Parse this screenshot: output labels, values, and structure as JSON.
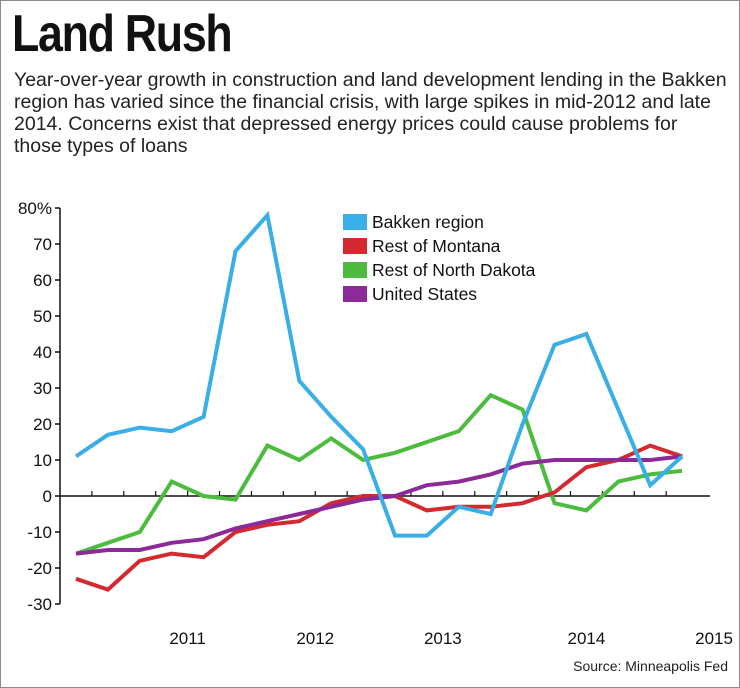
{
  "header": {
    "title": "Land Rush",
    "subtitle": "Year-over-year growth in construction and land development lending in the Bakken region has varied since the financial crisis, with large spikes in mid-2012 and late 2014. Concerns exist that depressed energy prices could cause problems for those types of loans"
  },
  "footer": {
    "source": "Source: Minneapolis Fed"
  },
  "colors": {
    "bakken": "#3aaee6",
    "montana": "#d42a2f",
    "north_dakota": "#4cbb3e",
    "united_states": "#8c2a98",
    "axis": "#111111"
  },
  "chart_data": {
    "type": "line",
    "title": "Land Rush",
    "xlabel": "",
    "ylabel": "",
    "ylim": [
      -30,
      80
    ],
    "y_ticks": [
      {
        "value": 80,
        "label": "80%"
      },
      {
        "value": 70,
        "label": "70"
      },
      {
        "value": 60,
        "label": "60"
      },
      {
        "value": 50,
        "label": "50"
      },
      {
        "value": 40,
        "label": "40"
      },
      {
        "value": 30,
        "label": "30"
      },
      {
        "value": 20,
        "label": "20"
      },
      {
        "value": 10,
        "label": "10"
      },
      {
        "value": 0,
        "label": "0"
      },
      {
        "value": -10,
        "label": "-10"
      },
      {
        "value": -20,
        "label": "-20"
      },
      {
        "value": -30,
        "label": "-30"
      }
    ],
    "x_year_labels": [
      {
        "label": "2011",
        "at": 4
      },
      {
        "label": "2012",
        "at": 8
      },
      {
        "label": "2013",
        "at": 12
      },
      {
        "label": "2014",
        "at": 16.5
      },
      {
        "label": "2015",
        "at": 20.5
      }
    ],
    "x_range": [
      0,
      21
    ],
    "legend_position": "top-center",
    "series": [
      {
        "name": "Bakken region",
        "color_key": "bakken",
        "values": [
          11,
          17,
          19,
          18,
          22,
          68,
          78,
          32,
          22,
          13,
          -11,
          -11,
          -3,
          -5,
          20,
          42,
          45,
          24,
          3,
          11
        ]
      },
      {
        "name": "Rest of Montana",
        "color_key": "montana",
        "values": [
          -23,
          -26,
          -18,
          -16,
          -17,
          -10,
          -8,
          -7,
          -2,
          0,
          0,
          -4,
          -3,
          -3,
          -2,
          1,
          8,
          10,
          14,
          11
        ]
      },
      {
        "name": "Rest of North Dakota",
        "color_key": "north_dakota",
        "values": [
          -16,
          -13,
          -10,
          4,
          0,
          -1,
          14,
          10,
          16,
          10,
          12,
          15,
          18,
          28,
          24,
          -2,
          -4,
          4,
          6,
          7
        ]
      },
      {
        "name": "United States",
        "color_key": "united_states",
        "values": [
          -16,
          -15,
          -15,
          -13,
          -12,
          -9,
          -7,
          -5,
          -3,
          -1,
          0,
          3,
          4,
          6,
          9,
          10,
          10,
          10,
          10,
          11
        ]
      }
    ],
    "x": [
      0.5,
      1.5,
      2.5,
      3.5,
      4.5,
      5.5,
      6.5,
      7.5,
      8.5,
      9.5,
      10.5,
      11.5,
      12.5,
      13.5,
      14.5,
      15.5,
      16.5,
      17.5,
      18.5,
      19.5
    ]
  }
}
